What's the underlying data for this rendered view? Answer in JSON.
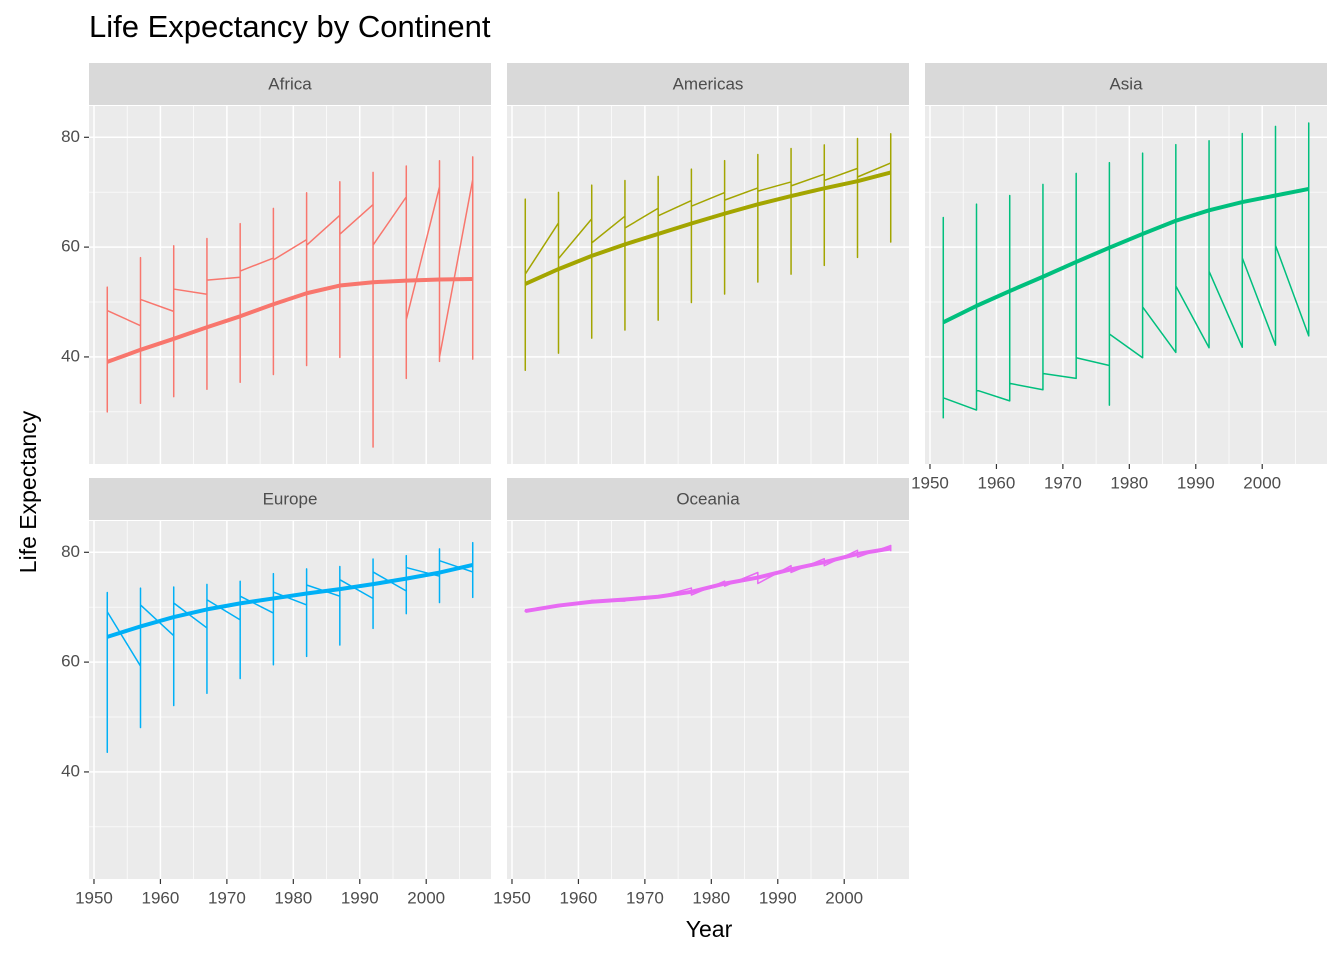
{
  "figure": {
    "title": "Life Expectancy by Continent",
    "x_label": "Year",
    "y_label": "Life Expectancy"
  },
  "chart_data": [
    {
      "type": "line",
      "title": "Africa",
      "xlim": [
        1949.25,
        2009.75
      ],
      "ylim": [
        20.5,
        85.7
      ],
      "xticks": [
        1950,
        1960,
        1970,
        1980,
        1990,
        2000
      ],
      "yticks": [
        40,
        60,
        80
      ],
      "grid": true,
      "series": [
        {
          "color": "#F8766D",
          "line_width": 1.5,
          "x": [
            1952,
            1952,
            1952,
            1952,
            1957,
            1957,
            1957,
            1957,
            1962,
            1962,
            1962,
            1962,
            1967,
            1967,
            1967,
            1967,
            1972,
            1972,
            1972,
            1972,
            1977,
            1977,
            1977,
            1977,
            1982,
            1982,
            1982,
            1982,
            1987,
            1987,
            1987,
            1987,
            1992,
            1992,
            1992,
            1992,
            1997,
            1997,
            1997,
            1997,
            2002,
            2002,
            2002,
            2002,
            2007,
            2007,
            2007,
            2007
          ],
          "values": [
            43.08,
            30.0,
            52.72,
            48.45,
            45.69,
            31.57,
            58.09,
            50.47,
            48.3,
            32.77,
            60.25,
            52.36,
            51.41,
            34.11,
            61.56,
            53.99,
            54.52,
            35.4,
            64.27,
            55.64,
            58.01,
            36.79,
            67.06,
            57.67,
            61.37,
            38.45,
            69.89,
            60.36,
            65.8,
            39.91,
            71.91,
            62.35,
            67.74,
            23.6,
            73.62,
            60.38,
            69.15,
            36.09,
            74.77,
            46.81,
            70.99,
            39.19,
            75.74,
            39.99,
            72.3,
            39.61,
            76.44,
            43.49
          ]
        },
        {
          "color": "#F8766D",
          "line_width": 4,
          "x": [
            1952,
            1957,
            1962,
            1967,
            1972,
            1977,
            1982,
            1987,
            1992,
            1997,
            2002,
            2007
          ],
          "values": [
            39.1,
            41.3,
            43.3,
            45.4,
            47.4,
            49.6,
            51.6,
            53.0,
            53.6,
            53.9,
            54.1,
            54.2
          ]
        }
      ]
    },
    {
      "type": "line",
      "title": "Americas",
      "xlim": [
        1949.25,
        2009.75
      ],
      "ylim": [
        20.5,
        85.7
      ],
      "xticks": [
        1950,
        1960,
        1970,
        1980,
        1990,
        2000
      ],
      "yticks": [
        40,
        60,
        80
      ],
      "grid": true,
      "series": [
        {
          "color": "#A3A500",
          "line_width": 1.5,
          "x": [
            1952,
            1952,
            1952,
            1952,
            1957,
            1957,
            1957,
            1957,
            1962,
            1962,
            1962,
            1962,
            1967,
            1967,
            1967,
            1967,
            1972,
            1972,
            1972,
            1972,
            1977,
            1977,
            1977,
            1977,
            1982,
            1982,
            1982,
            1982,
            1987,
            1987,
            1987,
            1987,
            1992,
            1992,
            1992,
            1992,
            1997,
            1997,
            1997,
            1997,
            2002,
            2002,
            2002,
            2002,
            2007,
            2007,
            2007,
            2007
          ],
          "values": [
            62.49,
            37.58,
            68.75,
            55.09,
            64.4,
            40.7,
            69.96,
            57.91,
            65.14,
            43.43,
            71.3,
            60.77,
            65.63,
            44.9,
            72.13,
            63.48,
            67.07,
            46.7,
            72.88,
            65.71,
            68.48,
            49.92,
            74.21,
            67.46,
            69.94,
            51.46,
            75.76,
            68.56,
            70.77,
            53.64,
            76.86,
            70.19,
            71.87,
            55.09,
            77.95,
            71.15,
            73.28,
            56.67,
            78.61,
            72.15,
            74.34,
            58.14,
            79.77,
            72.77,
            75.32,
            60.92,
            80.65,
            73.75
          ]
        },
        {
          "color": "#A3A500",
          "line_width": 4,
          "x": [
            1952,
            1957,
            1962,
            1967,
            1972,
            1977,
            1982,
            1987,
            1992,
            1997,
            2002,
            2007
          ],
          "values": [
            53.3,
            56.0,
            58.4,
            60.5,
            62.4,
            64.3,
            66.1,
            67.8,
            69.3,
            70.7,
            72.0,
            73.6
          ]
        }
      ]
    },
    {
      "type": "line",
      "title": "Asia",
      "xlim": [
        1949.25,
        2009.75
      ],
      "ylim": [
        20.5,
        85.7
      ],
      "xticks": [
        1950,
        1960,
        1970,
        1980,
        1990,
        2000
      ],
      "yticks": [
        40,
        60,
        80
      ],
      "grid": true,
      "series": [
        {
          "color": "#00BF7D",
          "line_width": 1.5,
          "x": [
            1952,
            1952,
            1952,
            1952,
            1957,
            1957,
            1957,
            1957,
            1962,
            1962,
            1962,
            1962,
            1967,
            1967,
            1967,
            1967,
            1972,
            1972,
            1972,
            1972,
            1977,
            1977,
            1977,
            1977,
            1982,
            1982,
            1982,
            1982,
            1987,
            1987,
            1987,
            1987,
            1992,
            1992,
            1992,
            1992,
            1997,
            1997,
            1997,
            1997,
            2002,
            2002,
            2002,
            2002,
            2007,
            2007,
            2007,
            2007
          ],
          "values": [
            28.8,
            28.8,
            65.39,
            32.55,
            30.33,
            30.33,
            67.84,
            33.97,
            32.0,
            32.0,
            69.39,
            35.18,
            34.02,
            34.02,
            71.43,
            36.98,
            36.09,
            36.09,
            73.42,
            39.85,
            38.44,
            31.22,
            75.38,
            44.18,
            39.85,
            39.85,
            77.11,
            49.11,
            40.82,
            40.82,
            78.67,
            52.92,
            41.67,
            41.67,
            79.36,
            55.6,
            41.76,
            41.76,
            80.69,
            58.02,
            42.13,
            42.13,
            82.0,
            60.31,
            43.83,
            43.83,
            82.6,
            62.7
          ]
        },
        {
          "color": "#00BF7D",
          "line_width": 4,
          "x": [
            1952,
            1957,
            1962,
            1967,
            1972,
            1977,
            1982,
            1987,
            1992,
            1997,
            2002,
            2007
          ],
          "values": [
            46.3,
            49.3,
            52.0,
            54.6,
            57.3,
            59.9,
            62.4,
            64.8,
            66.7,
            68.2,
            69.4,
            70.6
          ]
        }
      ]
    },
    {
      "type": "line",
      "title": "Europe",
      "xlim": [
        1949.25,
        2009.75
      ],
      "ylim": [
        20.5,
        85.7
      ],
      "xticks": [
        1950,
        1960,
        1970,
        1980,
        1990,
        2000
      ],
      "yticks": [
        40,
        60,
        80
      ],
      "grid": true,
      "series": [
        {
          "color": "#00B0F6",
          "line_width": 1.5,
          "x": [
            1952,
            1952,
            1952,
            1952,
            1957,
            1957,
            1957,
            1957,
            1962,
            1962,
            1962,
            1962,
            1967,
            1967,
            1967,
            1967,
            1972,
            1972,
            1972,
            1972,
            1977,
            1977,
            1977,
            1977,
            1982,
            1982,
            1982,
            1982,
            1987,
            1987,
            1987,
            1987,
            1992,
            1992,
            1992,
            1992,
            1997,
            1997,
            1997,
            1997,
            2002,
            2002,
            2002,
            2002,
            2007,
            2007,
            2007,
            2007
          ],
          "values": [
            55.23,
            43.59,
            72.67,
            69.18,
            59.28,
            48.08,
            73.47,
            70.42,
            64.82,
            52.1,
            73.68,
            70.76,
            66.22,
            54.34,
            74.16,
            71.36,
            67.69,
            57.01,
            74.72,
            72.01,
            68.93,
            59.51,
            76.11,
            72.76,
            70.42,
            61.04,
            76.99,
            74.04,
            72.0,
            63.11,
            77.41,
            75.01,
            71.58,
            66.15,
            78.77,
            76.42,
            72.95,
            68.84,
            79.39,
            77.22,
            75.65,
            70.85,
            80.62,
            78.47,
            76.42,
            71.78,
            81.76,
            79.43
          ]
        },
        {
          "color": "#00B0F6",
          "line_width": 4,
          "x": [
            1952,
            1957,
            1962,
            1967,
            1972,
            1977,
            1982,
            1987,
            1992,
            1997,
            2002,
            2007
          ],
          "values": [
            64.6,
            66.5,
            68.2,
            69.6,
            70.7,
            71.6,
            72.5,
            73.3,
            74.2,
            75.2,
            76.3,
            77.7
          ]
        }
      ]
    },
    {
      "type": "line",
      "title": "Oceania",
      "xlim": [
        1949.25,
        2009.75
      ],
      "ylim": [
        20.5,
        85.7
      ],
      "xticks": [
        1950,
        1960,
        1970,
        1980,
        1990,
        2000
      ],
      "yticks": [
        40,
        60,
        80
      ],
      "grid": true,
      "series": [
        {
          "color": "#E76BF3",
          "line_width": 1.5,
          "x": [
            1952,
            1952,
            1957,
            1957,
            1962,
            1962,
            1967,
            1967,
            1972,
            1972,
            1977,
            1977,
            1982,
            1982,
            1987,
            1987,
            1992,
            1992,
            1997,
            1997,
            2002,
            2002,
            2007,
            2007
          ],
          "values": [
            69.12,
            69.39,
            70.33,
            70.26,
            70.93,
            71.24,
            71.1,
            71.52,
            71.93,
            71.89,
            73.49,
            72.22,
            74.74,
            73.84,
            76.32,
            74.32,
            77.56,
            76.33,
            78.83,
            77.55,
            80.37,
            79.11,
            81.24,
            80.2
          ]
        },
        {
          "color": "#E76BF3",
          "line_width": 4,
          "x": [
            1952,
            1957,
            1962,
            1967,
            1972,
            1977,
            1982,
            1987,
            1992,
            1997,
            2002,
            2007
          ],
          "values": [
            69.3,
            70.3,
            71.0,
            71.4,
            71.9,
            72.8,
            74.3,
            75.4,
            76.9,
            78.2,
            79.7,
            80.7
          ]
        }
      ]
    }
  ]
}
